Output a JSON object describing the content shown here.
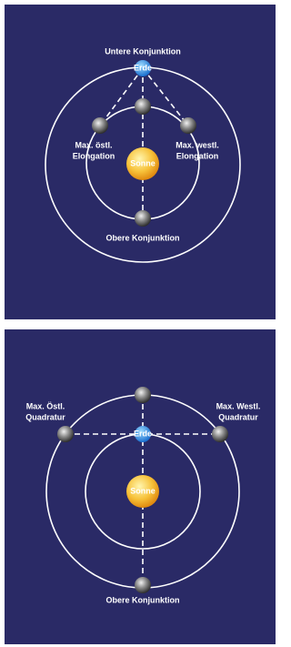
{
  "panels": [
    {
      "sun": "Sonne",
      "earth": "Erde",
      "labels": [
        "Untere Konjunktion",
        "Max. östl.",
        "Elongation",
        "Max. westl.",
        "Elongation",
        "Obere Konjunktion"
      ]
    },
    {
      "sun": "Sonne",
      "earth": "Erde",
      "labels": [
        "Max. Östl.",
        "Quadratur",
        "Max. Westl.",
        "Quadratur",
        "Obere Konjunktion"
      ]
    }
  ]
}
